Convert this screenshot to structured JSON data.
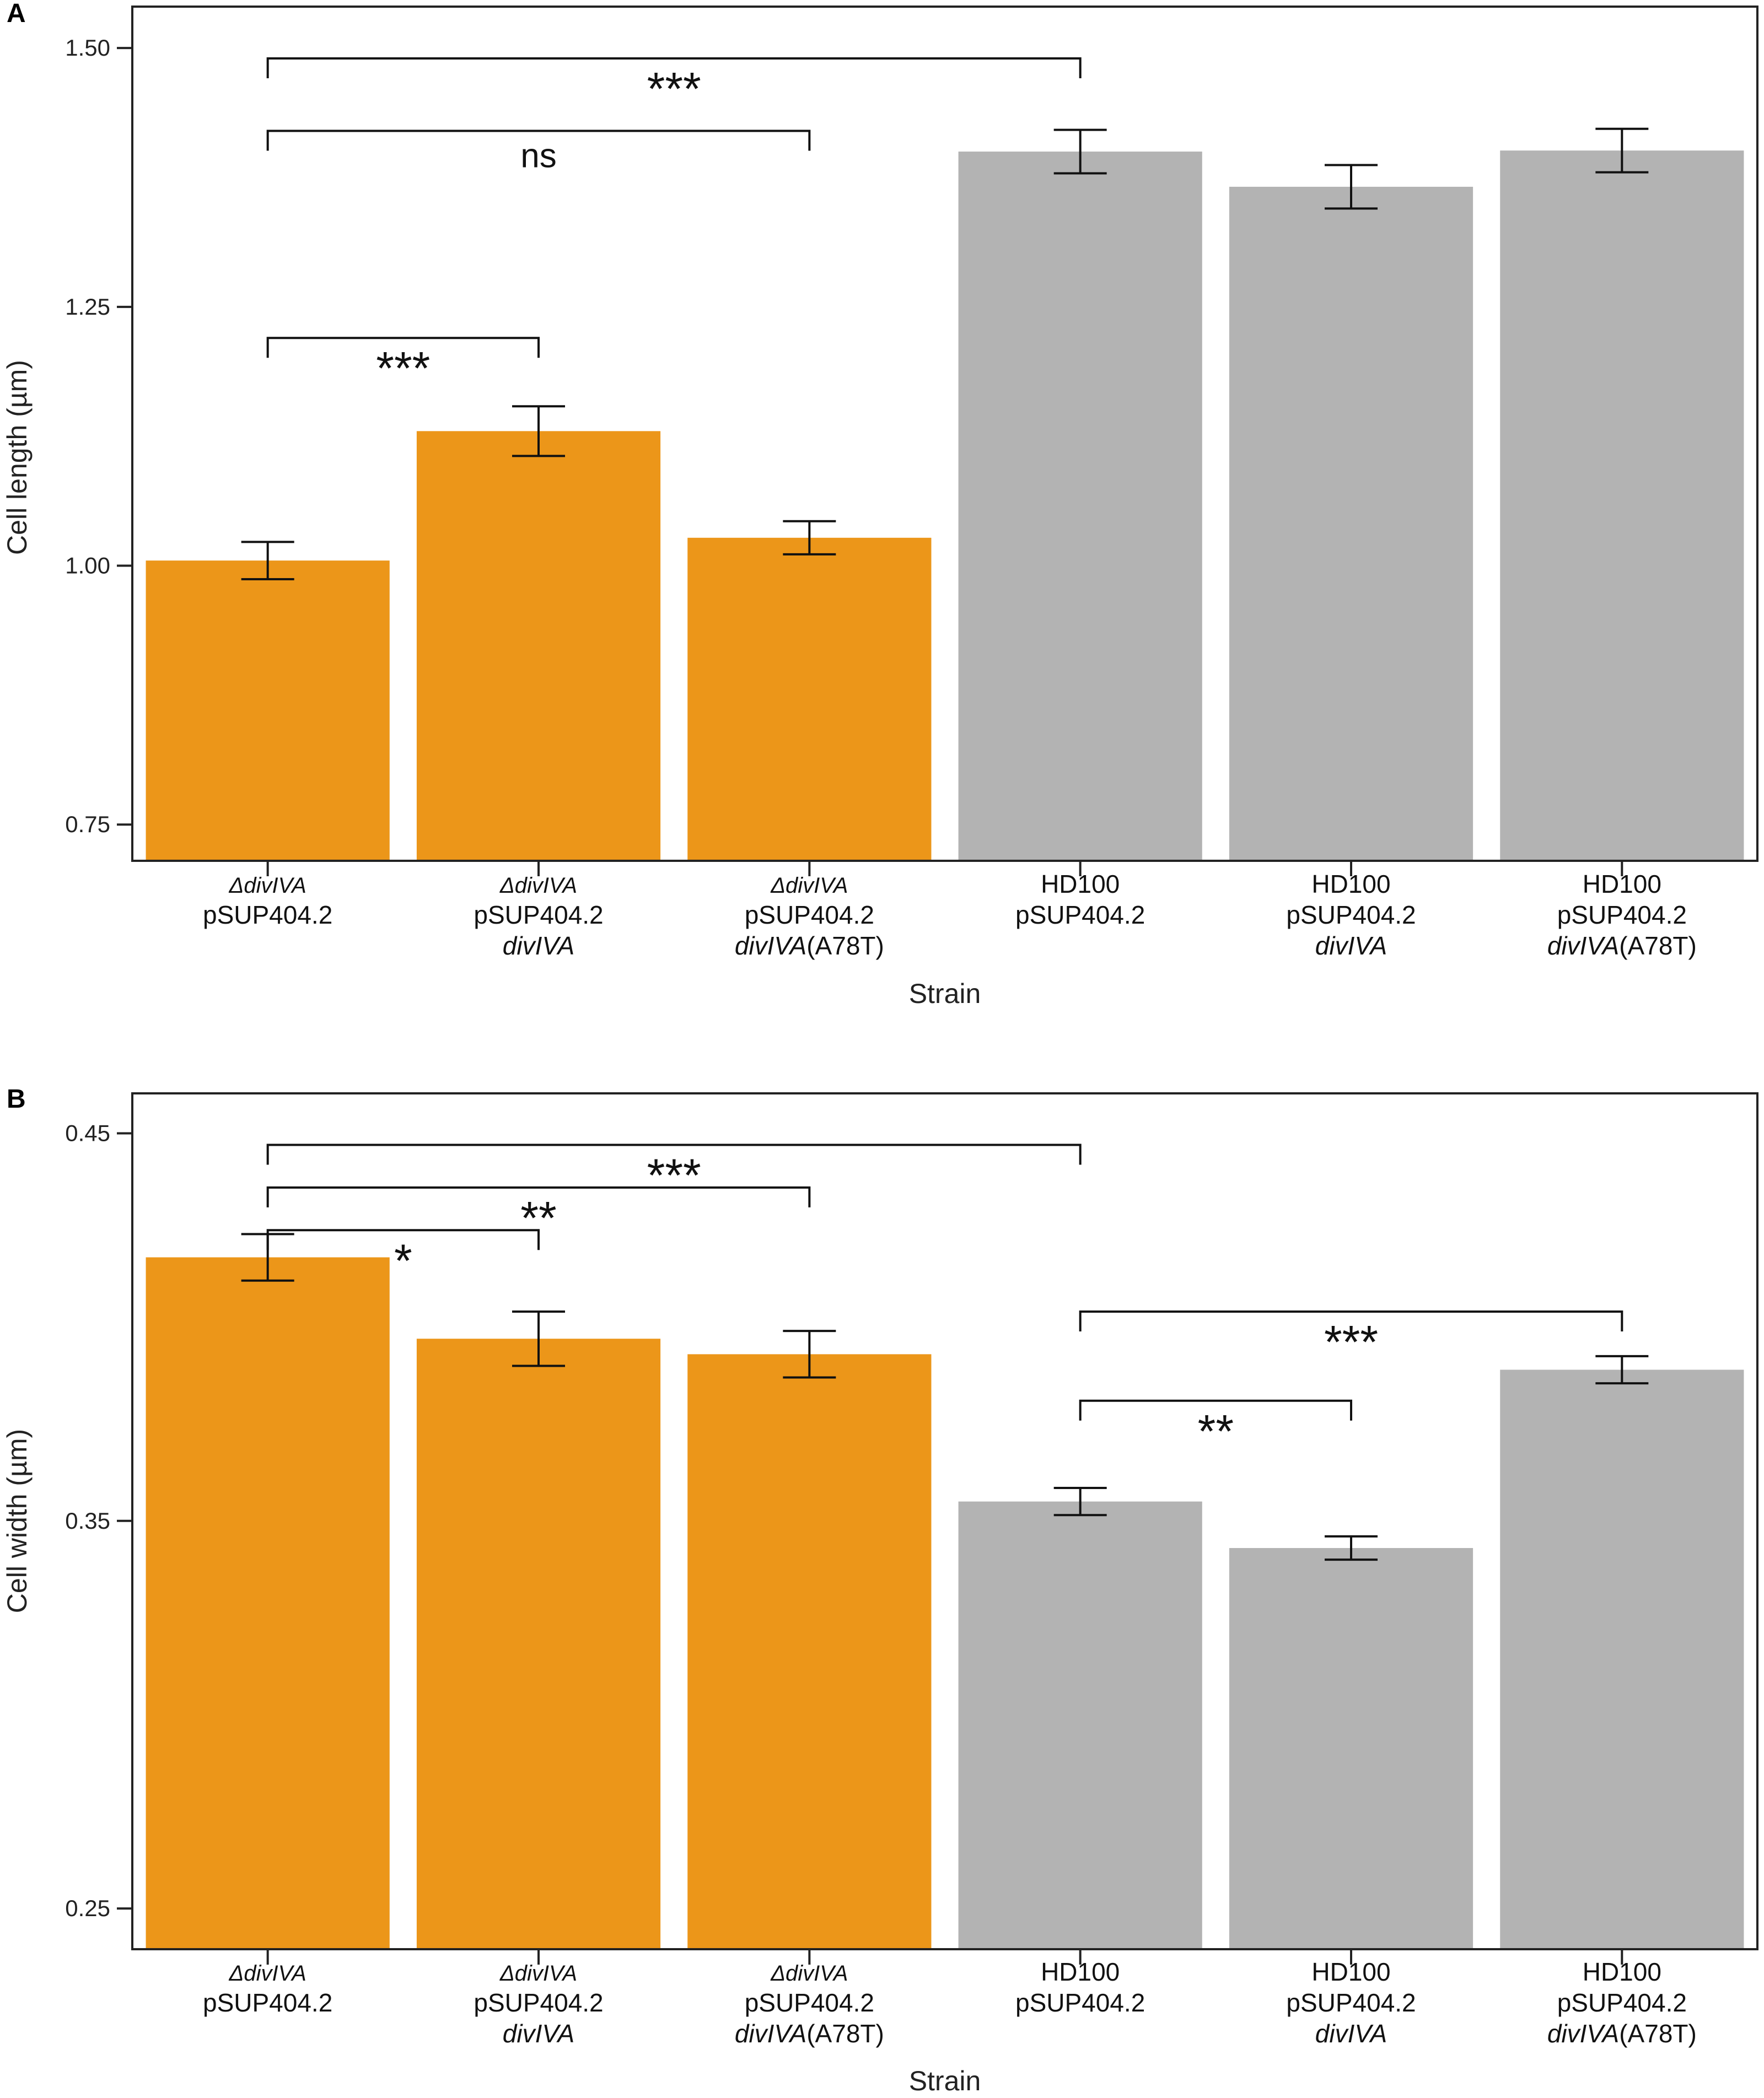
{
  "chart_data": [
    {
      "panel": "A",
      "type": "bar",
      "xlabel": "Strain",
      "ylabel": "Cell length (µm)",
      "ylim": [
        0.715,
        1.54
      ],
      "yticks": [
        "0.75",
        "1.00",
        "1.25",
        "1.50"
      ],
      "categories": [
        {
          "lines": [
            "ΔdivIVA",
            "pSUP404.2"
          ],
          "italic": [
            true,
            false
          ]
        },
        {
          "lines": [
            "ΔdivIVA",
            "pSUP404.2",
            "divIVA"
          ],
          "italic": [
            true,
            false,
            true
          ]
        },
        {
          "lines": [
            "ΔdivIVA",
            "pSUP404.2",
            "divIVA(A78T)"
          ],
          "italic": [
            true,
            false,
            "partial"
          ]
        },
        {
          "lines": [
            "HD100",
            "pSUP404.2"
          ],
          "italic": [
            false,
            false
          ]
        },
        {
          "lines": [
            "HD100",
            "pSUP404.2",
            "divIVA"
          ],
          "italic": [
            false,
            false,
            true
          ]
        },
        {
          "lines": [
            "HD100",
            "pSUP404.2",
            "divIVA(A78T)"
          ],
          "italic": [
            false,
            false,
            "partial"
          ]
        }
      ],
      "values": [
        1.005,
        1.13,
        1.027,
        1.4,
        1.366,
        1.401
      ],
      "errors": [
        0.018,
        0.024,
        0.016,
        0.021,
        0.021,
        0.021
      ],
      "colors": [
        "#EC9619",
        "#EC9619",
        "#EC9619",
        "#B3B3B3",
        "#B3B3B3",
        "#B3B3B3"
      ],
      "significance": [
        {
          "from": 0,
          "to": 3,
          "y": 1.49,
          "label": "***"
        },
        {
          "from": 0,
          "to": 2,
          "y": 1.42,
          "label": "ns"
        },
        {
          "from": 0,
          "to": 1,
          "y": 1.22,
          "label": "***"
        }
      ]
    },
    {
      "panel": "B",
      "type": "bar",
      "xlabel": "Strain",
      "ylabel": "Cell width (µm)",
      "ylim": [
        0.2395,
        0.4603
      ],
      "yticks": [
        "0.25",
        "0.35",
        "0.45"
      ],
      "categories": [
        {
          "lines": [
            "ΔdivIVA",
            "pSUP404.2"
          ],
          "italic": [
            true,
            false
          ]
        },
        {
          "lines": [
            "ΔdivIVA",
            "pSUP404.2",
            "divIVA"
          ],
          "italic": [
            true,
            false,
            true
          ]
        },
        {
          "lines": [
            "ΔdivIVA",
            "pSUP404.2",
            "divIVA(A78T)"
          ],
          "italic": [
            true,
            false,
            "partial"
          ]
        },
        {
          "lines": [
            "HD100",
            "pSUP404.2"
          ],
          "italic": [
            false,
            false
          ]
        },
        {
          "lines": [
            "HD100",
            "pSUP404.2",
            "divIVA"
          ],
          "italic": [
            false,
            false,
            true
          ]
        },
        {
          "lines": [
            "HD100",
            "pSUP404.2",
            "divIVA(A78T)"
          ],
          "italic": [
            false,
            false,
            "partial"
          ]
        }
      ],
      "values": [
        0.418,
        0.397,
        0.393,
        0.355,
        0.343,
        0.389
      ],
      "errors": [
        0.006,
        0.007,
        0.006,
        0.0035,
        0.003,
        0.0035
      ],
      "colors": [
        "#EC9619",
        "#EC9619",
        "#EC9619",
        "#B3B3B3",
        "#B3B3B3",
        "#B3B3B3"
      ],
      "significance": [
        {
          "from": 0,
          "to": 3,
          "y": 0.447,
          "label": "***"
        },
        {
          "from": 0,
          "to": 2,
          "y": 0.436,
          "label": "**"
        },
        {
          "from": 0,
          "to": 1,
          "y": 0.425,
          "label": "*"
        },
        {
          "from": 3,
          "to": 5,
          "y": 0.404,
          "label": "***"
        },
        {
          "from": 3,
          "to": 4,
          "y": 0.381,
          "label": "**"
        }
      ]
    }
  ]
}
